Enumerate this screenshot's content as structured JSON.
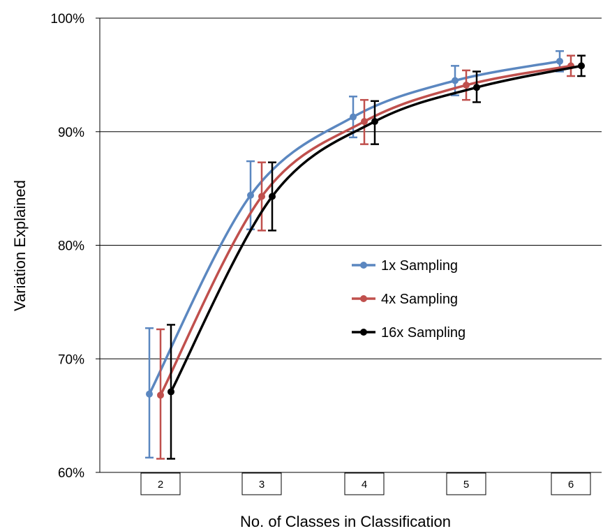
{
  "chart_data": {
    "type": "line",
    "title": "",
    "xlabel": "No. of Classes in Classification",
    "ylabel": "Variation Explained",
    "categories": [
      "2",
      "3",
      "4",
      "5",
      "6"
    ],
    "y_tick_labels": [
      "60%",
      "70%",
      "80%",
      "90%",
      "100%"
    ],
    "ylim": [
      60,
      100
    ],
    "grid": "horizontal",
    "legend_position": "right-center",
    "error_bars": true,
    "series": [
      {
        "name": "1x Sampling",
        "color": "#5b87c0",
        "values": [
          66.9,
          84.4,
          91.3,
          94.5,
          96.2
        ],
        "err_low": [
          61.3,
          81.4,
          89.5,
          93.2,
          95.3
        ],
        "err_high": [
          72.7,
          87.4,
          93.1,
          95.8,
          97.1
        ]
      },
      {
        "name": "4x Sampling",
        "color": "#c0504d",
        "values": [
          66.8,
          84.3,
          90.9,
          94.1,
          95.8
        ],
        "err_low": [
          61.2,
          81.3,
          88.9,
          92.8,
          94.9
        ],
        "err_high": [
          72.6,
          87.3,
          92.8,
          95.4,
          96.7
        ]
      },
      {
        "name": "16x Sampling",
        "color": "#000000",
        "values": [
          67.1,
          84.3,
          90.9,
          93.9,
          95.8
        ],
        "err_low": [
          61.2,
          81.3,
          88.9,
          92.6,
          94.9
        ],
        "err_high": [
          73.0,
          87.3,
          92.7,
          95.3,
          96.7
        ]
      }
    ]
  }
}
